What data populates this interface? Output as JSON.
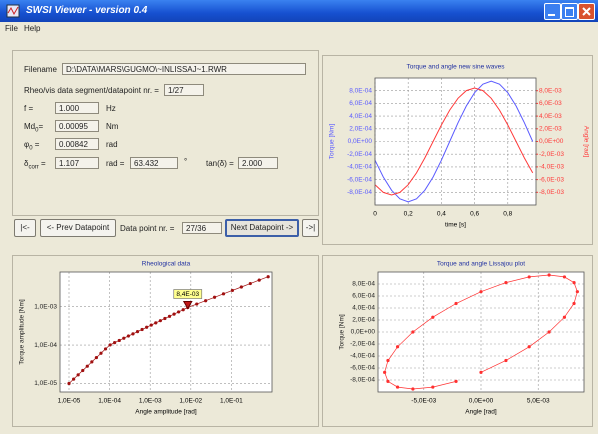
{
  "window": {
    "title": "SWSI Viewer - version 0.4",
    "menu": [
      "File",
      "Help"
    ]
  },
  "info": {
    "filename_label": "Filename",
    "filename": "D:\\DATA\\MARS\\GUGMO\\~INLISSAJ~1.RWR",
    "segment_label": "Rheo/vis data segment/datapoint nr. =",
    "segment": "1/27",
    "fields": [
      {
        "name": "f",
        "eq": "=",
        "value": "1.000",
        "unit": "Hz"
      },
      {
        "name": "Md",
        "sub": "0",
        "eq": "=",
        "value": "0.00095",
        "unit": "Nm"
      },
      {
        "name": "φ",
        "sub": "0",
        "eq": "=",
        "value": "0.00842",
        "unit": "rad"
      },
      {
        "name": "δ",
        "sub": "corr",
        "eq": "=",
        "value": "1.107",
        "unit": "rad =",
        "value2": "63.432",
        "unit2": "°"
      }
    ],
    "tan_label": "tan(δ) =",
    "tan_value": "2.000"
  },
  "nav": {
    "first": "|<-",
    "prev": "<- Prev Datapoint",
    "point_label": "Data point nr. =",
    "point": "27/36",
    "next": "Next Datapoint ->",
    "last": "->|"
  },
  "chart_data": [
    {
      "type": "line",
      "title": "Torque and angle new sine waves",
      "x_label": "time [s]",
      "y_label": "Torque [Nm]",
      "y2_label": "Angle [rad]",
      "x": [
        0,
        0.05,
        0.1,
        0.15,
        0.2,
        0.25,
        0.3,
        0.35,
        0.4,
        0.45,
        0.5,
        0.55,
        0.6,
        0.65,
        0.7,
        0.75,
        0.8,
        0.85,
        0.9,
        0.95
      ],
      "series": [
        {
          "color": "#5a5aff",
          "values": [
            -0.000294,
            -0.000559,
            -0.000769,
            -0.000903,
            -0.00095,
            -0.000903,
            -0.000769,
            -0.000559,
            -0.000294,
            0,
            0.000294,
            0.000559,
            0.000769,
            0.000903,
            0.00095,
            0.000903,
            0.000769,
            0.000559,
            0.000294,
            0
          ]
        },
        {
          "color": "#ff3a3a",
          "axis": "y2",
          "values": [
            -0.00681,
            -0.00801,
            -0.00842,
            -0.00801,
            -0.00681,
            -0.00495,
            -0.0026,
            0,
            0.0026,
            0.00495,
            0.00681,
            0.00801,
            0.00842,
            0.00801,
            0.00681,
            0.00495,
            0.0026,
            0,
            -0.0026,
            -0.00495
          ]
        }
      ],
      "xlim": [
        0,
        0.97
      ],
      "xticks": [
        0,
        {
          "value": 0.2,
          "label": "0,2"
        },
        {
          "value": 0.4,
          "label": "0,4"
        },
        {
          "value": 0.6,
          "label": "0,6"
        },
        {
          "value": 0.8,
          "label": "0,8"
        }
      ],
      "ylim": [
        -0.001,
        0.001
      ],
      "yticks": [
        {
          "value": 0.0008,
          "label": "8,0E-04"
        },
        {
          "value": 0.0006,
          "label": "6,0E-04"
        },
        {
          "value": 0.0004,
          "label": "4,0E-04"
        },
        {
          "value": 0.0002,
          "label": "2,0E-04"
        },
        {
          "value": 0,
          "label": "0,0E+00"
        },
        {
          "value": -0.0002,
          "label": "-2,0E-04"
        },
        {
          "value": -0.0004,
          "label": "-4,0E-04"
        },
        {
          "value": -0.0006,
          "label": "-6,0E-04"
        },
        {
          "value": -0.0008,
          "label": "-8,0E-04"
        }
      ],
      "y2lim": [
        -0.01,
        0.01
      ],
      "y2ticks": [
        {
          "value": 0.008,
          "label": "8,0E-03"
        },
        {
          "value": 0.006,
          "label": "6,0E-03"
        },
        {
          "value": 0.004,
          "label": "4,0E-03"
        },
        {
          "value": 0.002,
          "label": "2,0E-03"
        },
        {
          "value": 0,
          "label": "0,0E+00"
        },
        {
          "value": -0.002,
          "label": "-2,0E-03"
        },
        {
          "value": -0.004,
          "label": "-4,0E-03"
        },
        {
          "value": -0.006,
          "label": "-6,0E-03"
        },
        {
          "value": -0.008,
          "label": "-8,0E-03"
        }
      ],
      "grid": true
    },
    {
      "type": "scatter",
      "title": "Rheological data",
      "x_label": "Angle amplitude [rad]",
      "y_label": "Torque amplitude [Nm]",
      "xscale": "log",
      "yscale": "log",
      "series": [
        {
          "color": "#a01010",
          "line": true,
          "x": [
            1e-05,
            1.3e-05,
            1.68e-05,
            2.18e-05,
            2.82e-05,
            3.65e-05,
            4.73e-05,
            6.13e-05,
            7.94e-05,
            0.000103,
            0.000133,
            0.000173,
            0.000224,
            0.00029,
            0.000376,
            0.000487,
            0.000631,
            0.000818,
            0.00106,
            0.00137,
            0.00178,
            0.0023,
            0.00299,
            0.00387,
            0.00501,
            0.00649,
            0.00842,
            0.014,
            0.0232,
            0.0385,
            0.0638,
            0.106,
            0.176,
            0.292,
            0.484,
            0.804
          ],
          "values": [
            1e-05,
            1.3e-05,
            1.68e-05,
            2.18e-05,
            2.82e-05,
            3.65e-05,
            4.73e-05,
            6.13e-05,
            7.94e-05,
            0.000101,
            0.000116,
            0.000132,
            0.000151,
            0.000172,
            0.000196,
            0.000224,
            0.000255,
            0.000291,
            0.000332,
            0.000378,
            0.000432,
            0.000492,
            0.000561,
            0.00064,
            0.00073,
            0.000833,
            0.00095,
            0.00117,
            0.00143,
            0.00176,
            0.00216,
            0.00265,
            0.00326,
            0.004,
            0.00491,
            0.00603
          ]
        }
      ],
      "xlim": [
        6e-06,
        1
      ],
      "xticks": [
        {
          "value": 1e-05,
          "label": "1,0E-05"
        },
        {
          "value": 0.0001,
          "label": "1,0E-04"
        },
        {
          "value": 0.001,
          "label": "1,0E-03"
        },
        {
          "value": 0.01,
          "label": "1,0E-02"
        },
        {
          "value": 0.1,
          "label": "1,0E-01"
        }
      ],
      "ylim": [
        6e-06,
        0.008
      ],
      "yticks": [
        {
          "value": 1e-05,
          "label": "1,0E-05"
        },
        {
          "value": 0.0001,
          "label": "1,0E-04"
        },
        {
          "value": 0.001,
          "label": "1,0E-03"
        }
      ],
      "grid": true,
      "annotation": {
        "label": "8,4E-03",
        "point": 26
      }
    },
    {
      "type": "scatter",
      "title": "Torque and angle Lissajou plot",
      "x_label": "Angle [rad]",
      "y_label": "Torque [Nm]",
      "series": [
        {
          "color": "#ff3030",
          "line": true,
          "x": [
            0,
            0.00218,
            0.00421,
            0.00595,
            0.00729,
            0.00813,
            0.00842,
            0.00813,
            0.00729,
            0.00595,
            0.00421,
            0.00218,
            0,
            -0.00218,
            -0.00421,
            -0.00595,
            -0.00729,
            -0.00813,
            -0.00842,
            -0.00813,
            -0.00729,
            -0.00595,
            -0.00421,
            -0.00218
          ],
          "values": [
            -0.000672,
            -0.000475,
            -0.000246,
            0,
            0.000246,
            0.000475,
            0.000672,
            0.000823,
            0.000918,
            0.00095,
            0.000918,
            0.000823,
            0.000672,
            0.000475,
            0.000246,
            0,
            -0.000246,
            -0.000475,
            -0.000672,
            -0.000823,
            -0.000918,
            -0.00095,
            -0.000918,
            -0.000823
          ]
        }
      ],
      "xlim": [
        -0.009,
        0.009
      ],
      "xticks": [
        {
          "value": -0.005,
          "label": "-5,0E-03"
        },
        {
          "value": 0,
          "label": "0,0E+00"
        },
        {
          "value": 0.005,
          "label": "5,0E-03"
        }
      ],
      "ylim": [
        -0.001,
        0.001
      ],
      "yticks": [
        {
          "value": 0.0008,
          "label": "8,0E-04"
        },
        {
          "value": 0.0006,
          "label": "6,0E-04"
        },
        {
          "value": 0.0004,
          "label": "4,0E-04"
        },
        {
          "value": 0.0002,
          "label": "2,0E-04"
        },
        {
          "value": 0,
          "label": "0,0E+00"
        },
        {
          "value": -0.0002,
          "label": "-2,0E-04"
        },
        {
          "value": -0.0004,
          "label": "-4,0E-04"
        },
        {
          "value": -0.0006,
          "label": "-6,0E-04"
        },
        {
          "value": -0.0008,
          "label": "-8,0E-04"
        }
      ],
      "grid": true
    }
  ]
}
